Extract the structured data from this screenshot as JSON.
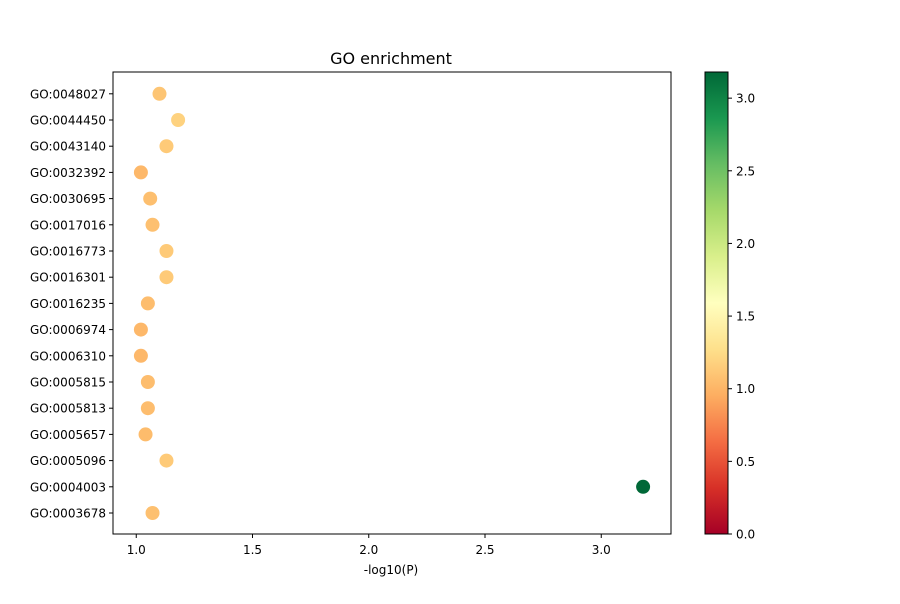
{
  "chart_data": {
    "type": "scatter",
    "title": "GO enrichment",
    "xlabel": "-log10(P)",
    "ylabel": "",
    "xlim": [
      0.9,
      3.3
    ],
    "x_ticks": [
      1.0,
      1.5,
      2.0,
      2.5,
      3.0
    ],
    "x_tick_labels": [
      "1.0",
      "1.5",
      "2.0",
      "2.5",
      "3.0"
    ],
    "categories": [
      "GO:0003678",
      "GO:0004003",
      "GO:0005096",
      "GO:0005657",
      "GO:0005813",
      "GO:0005815",
      "GO:0006310",
      "GO:0006974",
      "GO:0016235",
      "GO:0016301",
      "GO:0016773",
      "GO:0017016",
      "GO:0030695",
      "GO:0032392",
      "GO:0043140",
      "GO:0044450",
      "GO:0048027"
    ],
    "values": [
      1.07,
      3.18,
      1.13,
      1.04,
      1.05,
      1.05,
      1.02,
      1.02,
      1.05,
      1.13,
      1.13,
      1.07,
      1.06,
      1.02,
      1.13,
      1.18,
      1.1
    ],
    "colormap": "RdYlGn",
    "colorbar": {
      "range": [
        0.0,
        3.18
      ],
      "ticks": [
        0.0,
        0.5,
        1.0,
        1.5,
        2.0,
        2.5,
        3.0
      ],
      "tick_labels": [
        "0.0",
        "0.5",
        "1.0",
        "1.5",
        "2.0",
        "2.5",
        "3.0"
      ]
    },
    "grid": false,
    "legend": "none"
  }
}
